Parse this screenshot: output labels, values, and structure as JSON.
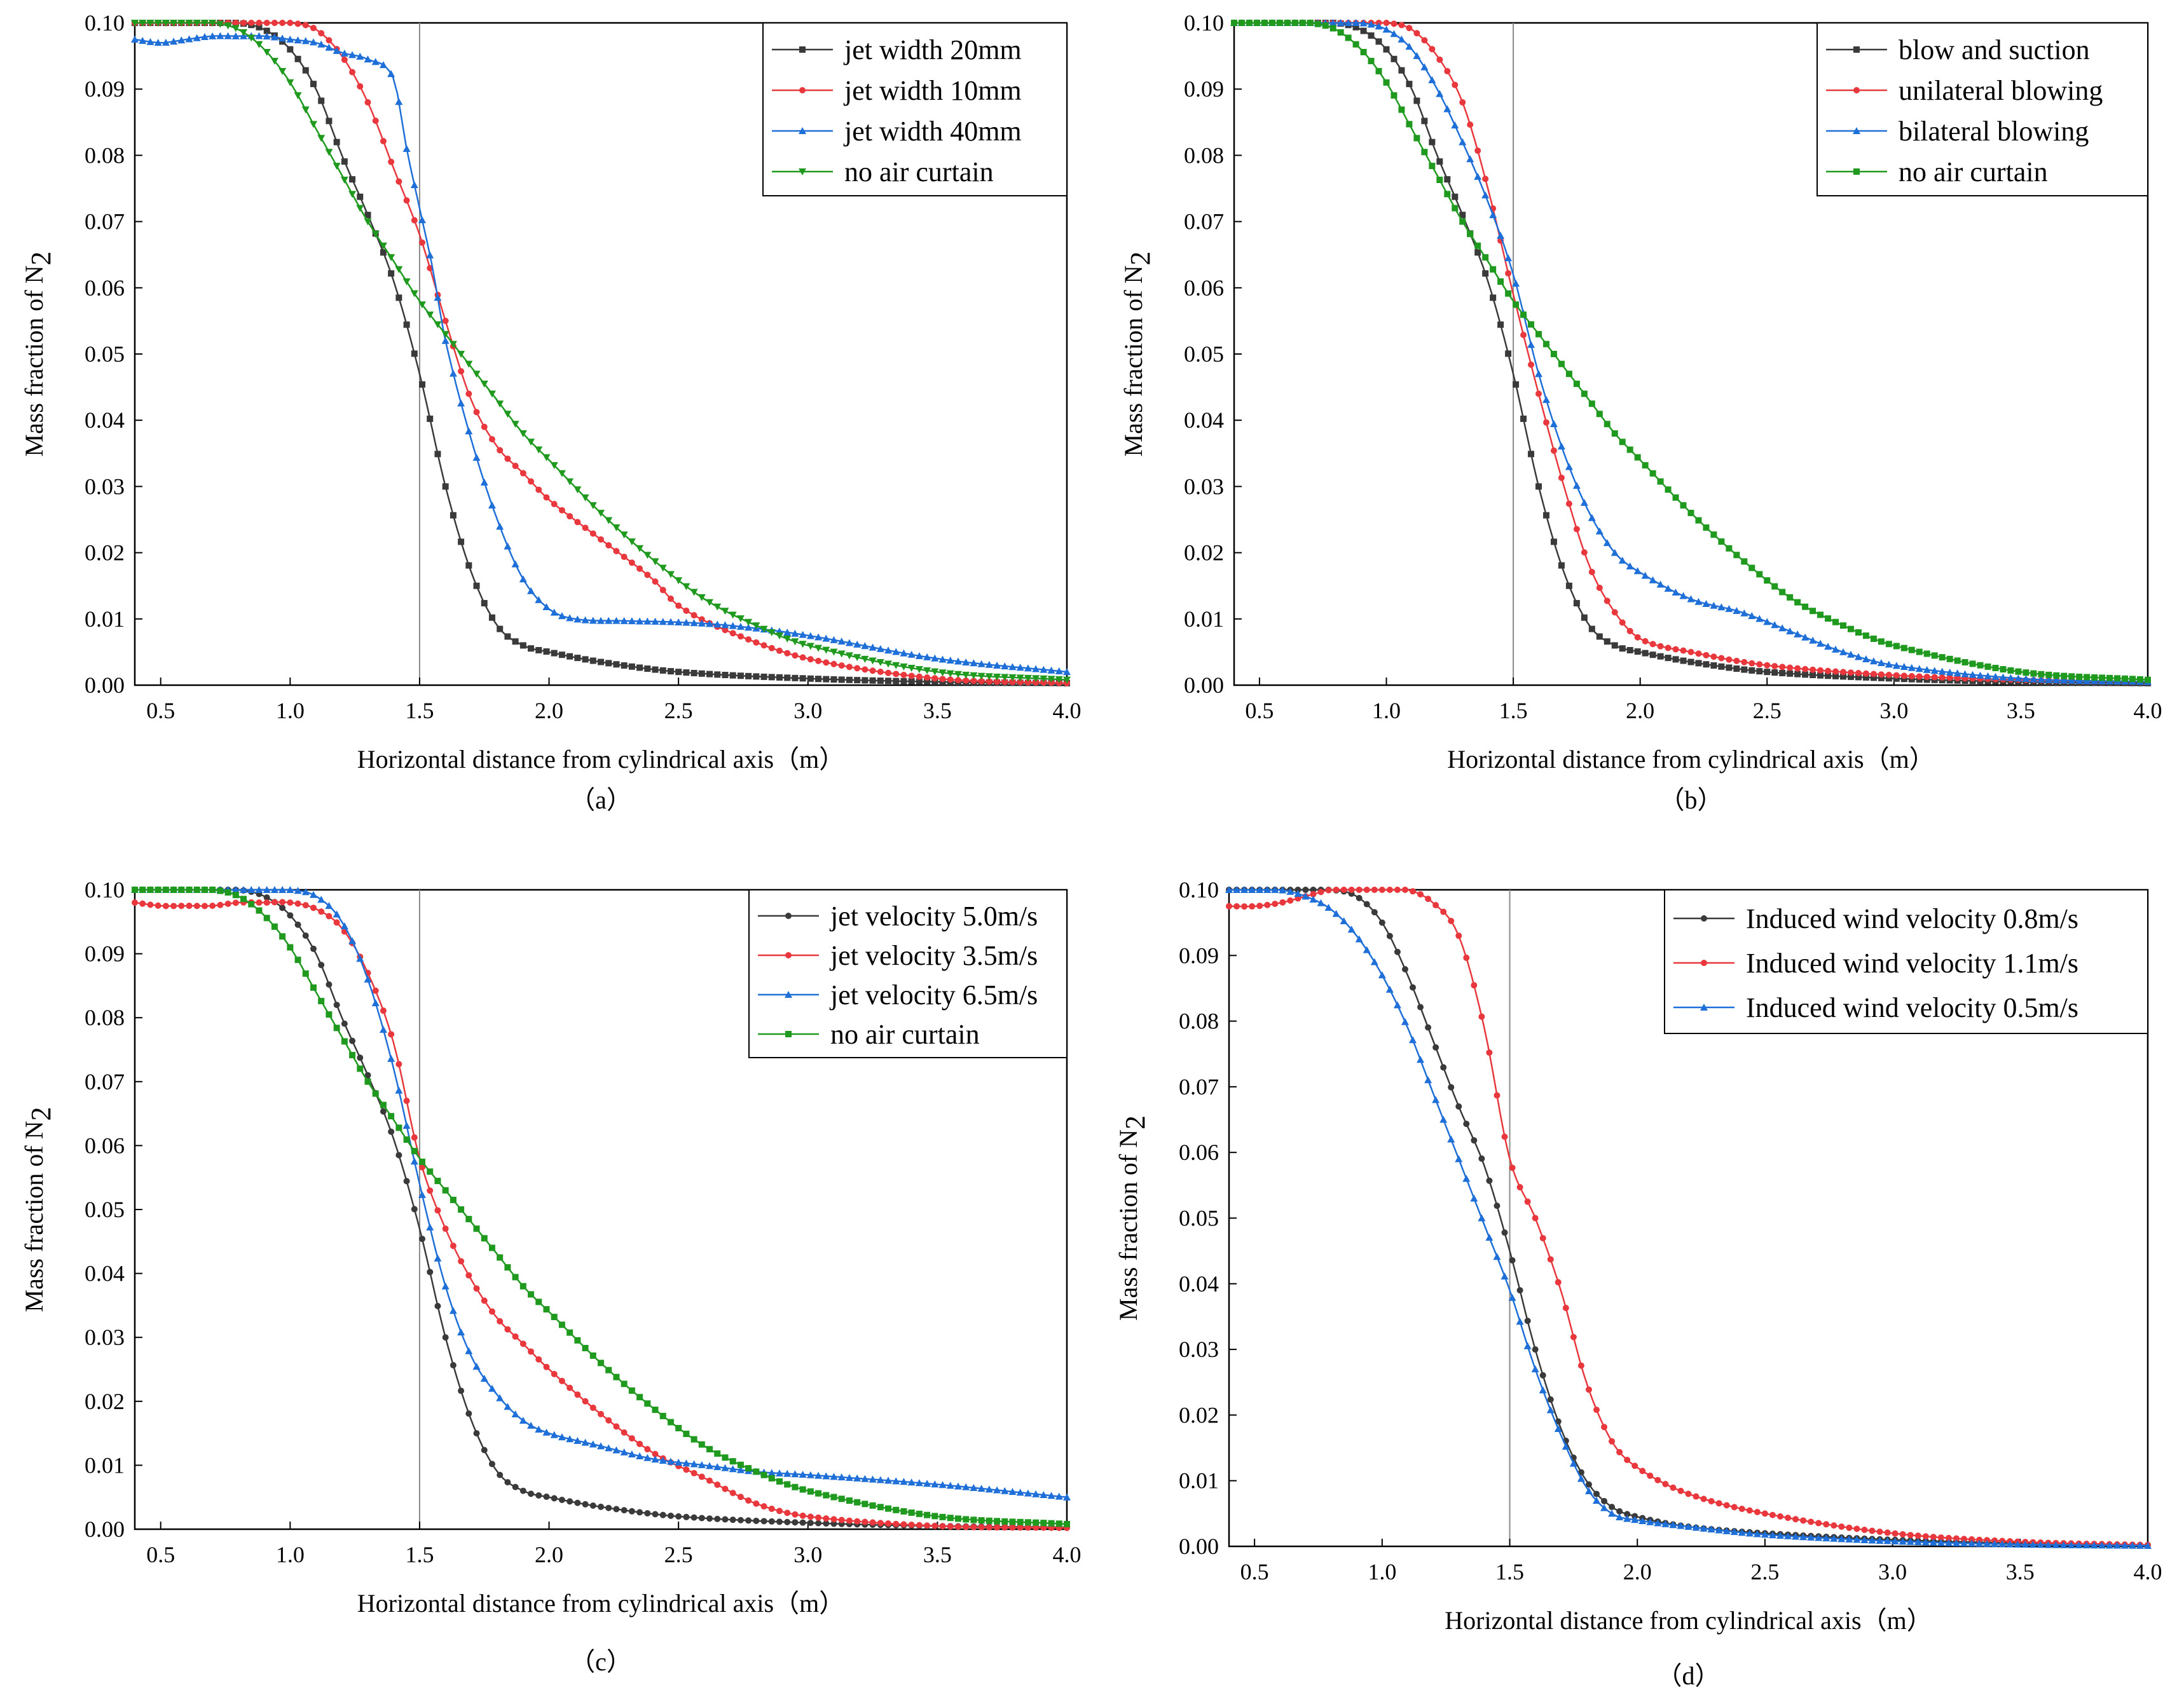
{
  "figure": {
    "colors": {
      "black": "#3a3a3a",
      "red": "#e8383d",
      "blue": "#1f6fd8",
      "green": "#1f9a1f",
      "axis": "#000000",
      "refline": "#8a8a8a"
    }
  },
  "chart_data": [
    {
      "type": "line",
      "panel": "a",
      "caption": "（a）",
      "xlabel": "Horizontal distance from cylindrical axis（m）",
      "ylabel_main": "Mass fraction of N",
      "ylabel_sub": "2",
      "xlim": [
        0.4,
        4.0
      ],
      "ylim": [
        0.0,
        0.1
      ],
      "xticks": [
        0.5,
        1.0,
        1.5,
        2.0,
        2.5,
        3.0,
        3.5,
        4.0
      ],
      "xtick_labels": [
        "0.5",
        "1.0",
        "1.5",
        "2.0",
        "2.5",
        "3.0",
        "3.5",
        "4.0"
      ],
      "yticks": [
        0,
        0.01,
        0.02,
        0.03,
        0.04,
        0.05,
        0.06,
        0.07,
        0.08,
        0.09,
        0.1
      ],
      "ytick_labels": [
        "0.00",
        "0.01",
        "0.02",
        "0.03",
        "0.04",
        "0.05",
        "0.06",
        "0.07",
        "0.08",
        "0.09",
        "0.10"
      ],
      "reference_x": 1.5,
      "legend_position": "top-right",
      "series": [
        {
          "name": "jet width 20mm",
          "color": "#3a3a3a",
          "marker": "square",
          "x": [
            0.4,
            0.5,
            0.6,
            0.7,
            0.8,
            0.9,
            1.0,
            1.1,
            1.2,
            1.3,
            1.4,
            1.5,
            1.6,
            1.7,
            1.8,
            1.9,
            2.0,
            2.2,
            2.5,
            3.0,
            3.5,
            4.0
          ],
          "y": [
            0.1,
            0.1,
            0.1,
            0.1,
            0.1,
            0.099,
            0.096,
            0.09,
            0.08,
            0.071,
            0.061,
            0.047,
            0.03,
            0.017,
            0.009,
            0.006,
            0.005,
            0.0035,
            0.002,
            0.001,
            0.0005,
            0.0003
          ]
        },
        {
          "name": "jet width 10mm",
          "color": "#e8383d",
          "marker": "circle",
          "x": [
            0.4,
            0.5,
            0.6,
            0.7,
            0.8,
            0.9,
            1.0,
            1.1,
            1.2,
            1.3,
            1.4,
            1.5,
            1.6,
            1.7,
            1.8,
            1.9,
            2.0,
            2.2,
            2.4,
            2.5,
            2.7,
            3.0,
            3.5,
            4.0
          ],
          "y": [
            0.1,
            0.1,
            0.1,
            0.1,
            0.1,
            0.1,
            0.1,
            0.099,
            0.095,
            0.088,
            0.078,
            0.068,
            0.055,
            0.043,
            0.036,
            0.032,
            0.028,
            0.022,
            0.016,
            0.012,
            0.008,
            0.004,
            0.001,
            0.0003
          ]
        },
        {
          "name": "jet width 40mm",
          "color": "#1f6fd8",
          "marker": "triangle",
          "x": [
            0.4,
            0.5,
            0.6,
            0.7,
            0.8,
            0.9,
            1.0,
            1.1,
            1.2,
            1.3,
            1.4,
            1.45,
            1.5,
            1.55,
            1.6,
            1.7,
            1.8,
            1.9,
            2.0,
            2.1,
            2.3,
            2.5,
            2.7,
            3.0,
            3.5,
            4.0
          ],
          "y": [
            0.0975,
            0.097,
            0.0975,
            0.098,
            0.098,
            0.098,
            0.0975,
            0.097,
            0.0955,
            0.0945,
            0.0915,
            0.081,
            0.072,
            0.063,
            0.052,
            0.037,
            0.025,
            0.016,
            0.0115,
            0.01,
            0.0097,
            0.0095,
            0.009,
            0.0075,
            0.004,
            0.002
          ]
        },
        {
          "name": "no air curtain",
          "color": "#1f9a1f",
          "marker": "triangle-down",
          "x": [
            0.4,
            0.5,
            0.6,
            0.7,
            0.8,
            0.9,
            1.0,
            1.1,
            1.2,
            1.3,
            1.4,
            1.5,
            1.6,
            1.7,
            1.8,
            1.9,
            2.0,
            2.2,
            2.4,
            2.6,
            2.8,
            3.0,
            3.5,
            4.0
          ],
          "y": [
            0.1,
            0.1,
            0.1,
            0.1,
            0.099,
            0.096,
            0.091,
            0.084,
            0.077,
            0.07,
            0.064,
            0.058,
            0.053,
            0.048,
            0.043,
            0.038,
            0.034,
            0.026,
            0.019,
            0.013,
            0.009,
            0.006,
            0.002,
            0.0008
          ]
        }
      ]
    },
    {
      "type": "line",
      "panel": "b",
      "caption": "（b）",
      "xlabel": "Horizontal distance from cylindrical axis（m）",
      "ylabel_main": "Mass fraction of N",
      "ylabel_sub": "2",
      "xlim": [
        0.4,
        4.0
      ],
      "ylim": [
        0.0,
        0.1
      ],
      "xticks": [
        0.5,
        1.0,
        1.5,
        2.0,
        2.5,
        3.0,
        3.5,
        4.0
      ],
      "xtick_labels": [
        "0.5",
        "1.0",
        "1.5",
        "2.0",
        "2.5",
        "3.0",
        "3.5",
        "4.0"
      ],
      "yticks": [
        0,
        0.01,
        0.02,
        0.03,
        0.04,
        0.05,
        0.06,
        0.07,
        0.08,
        0.09,
        0.1
      ],
      "ytick_labels": [
        "0.00",
        "0.01",
        "0.02",
        "0.03",
        "0.04",
        "0.05",
        "0.06",
        "0.07",
        "0.08",
        "0.09",
        "0.10"
      ],
      "reference_x": 1.5,
      "legend_position": "top-right",
      "series": [
        {
          "name": "blow and suction",
          "color": "#3a3a3a",
          "marker": "square",
          "x": [
            0.4,
            0.5,
            0.6,
            0.7,
            0.8,
            0.9,
            1.0,
            1.1,
            1.2,
            1.3,
            1.4,
            1.5,
            1.6,
            1.7,
            1.8,
            1.9,
            2.0,
            2.2,
            2.5,
            3.0,
            3.5,
            4.0
          ],
          "y": [
            0.1,
            0.1,
            0.1,
            0.1,
            0.1,
            0.099,
            0.096,
            0.09,
            0.08,
            0.071,
            0.061,
            0.047,
            0.03,
            0.017,
            0.009,
            0.006,
            0.005,
            0.0035,
            0.002,
            0.001,
            0.0005,
            0.0003
          ]
        },
        {
          "name": "unilateral blowing",
          "color": "#e8383d",
          "marker": "circle",
          "x": [
            0.4,
            0.5,
            0.6,
            0.7,
            0.8,
            0.9,
            1.0,
            1.1,
            1.2,
            1.3,
            1.4,
            1.5,
            1.6,
            1.7,
            1.8,
            1.9,
            2.0,
            2.2,
            2.5,
            3.0,
            3.5,
            4.0
          ],
          "y": [
            0.1,
            0.1,
            0.1,
            0.1,
            0.1,
            0.1,
            0.1,
            0.099,
            0.095,
            0.088,
            0.075,
            0.059,
            0.044,
            0.03,
            0.018,
            0.011,
            0.007,
            0.005,
            0.003,
            0.0015,
            0.0008,
            0.0005
          ]
        },
        {
          "name": "bilateral blowing",
          "color": "#1f6fd8",
          "marker": "triangle",
          "x": [
            0.4,
            0.5,
            0.6,
            0.7,
            0.8,
            0.9,
            1.0,
            1.1,
            1.2,
            1.3,
            1.4,
            1.5,
            1.6,
            1.7,
            1.8,
            1.9,
            2.0,
            2.2,
            2.4,
            2.6,
            2.8,
            3.0,
            3.5,
            4.0
          ],
          "y": [
            0.1,
            0.1,
            0.1,
            0.1,
            0.1,
            0.1,
            0.099,
            0.096,
            0.09,
            0.082,
            0.073,
            0.062,
            0.047,
            0.035,
            0.026,
            0.02,
            0.017,
            0.013,
            0.011,
            0.008,
            0.005,
            0.003,
            0.001,
            0.0005
          ]
        },
        {
          "name": "no air curtain",
          "color": "#1f9a1f",
          "marker": "square",
          "x": [
            0.4,
            0.5,
            0.6,
            0.7,
            0.8,
            0.9,
            1.0,
            1.1,
            1.2,
            1.3,
            1.4,
            1.5,
            1.6,
            1.7,
            1.8,
            1.9,
            2.0,
            2.2,
            2.4,
            2.6,
            2.8,
            3.0,
            3.5,
            4.0
          ],
          "y": [
            0.1,
            0.1,
            0.1,
            0.1,
            0.099,
            0.096,
            0.091,
            0.084,
            0.077,
            0.07,
            0.064,
            0.058,
            0.053,
            0.048,
            0.043,
            0.038,
            0.034,
            0.026,
            0.019,
            0.013,
            0.009,
            0.006,
            0.002,
            0.0008
          ]
        }
      ]
    },
    {
      "type": "line",
      "panel": "c",
      "caption": "（c）",
      "xlabel": "Horizontal distance from cylindrical axis（m）",
      "ylabel_main": "Mass fraction of N",
      "ylabel_sub": "2",
      "xlim": [
        0.4,
        4.0
      ],
      "ylim": [
        0.0,
        0.1
      ],
      "xticks": [
        0.5,
        1.0,
        1.5,
        2.0,
        2.5,
        3.0,
        3.5,
        4.0
      ],
      "xtick_labels": [
        "0.5",
        "1.0",
        "1.5",
        "2.0",
        "2.5",
        "3.0",
        "3.5",
        "4.0"
      ],
      "yticks": [
        0,
        0.01,
        0.02,
        0.03,
        0.04,
        0.05,
        0.06,
        0.07,
        0.08,
        0.09,
        0.1
      ],
      "ytick_labels": [
        "0.00",
        "0.01",
        "0.02",
        "0.03",
        "0.04",
        "0.05",
        "0.06",
        "0.07",
        "0.08",
        "0.09",
        "0.10"
      ],
      "reference_x": 1.5,
      "legend_position": "top-right",
      "series": [
        {
          "name": "jet velocity 5.0m/s",
          "color": "#3a3a3a",
          "marker": "circle",
          "x": [
            0.4,
            0.5,
            0.6,
            0.7,
            0.8,
            0.9,
            1.0,
            1.1,
            1.2,
            1.3,
            1.4,
            1.5,
            1.6,
            1.7,
            1.8,
            1.9,
            2.0,
            2.2,
            2.5,
            3.0,
            3.5,
            4.0
          ],
          "y": [
            0.1,
            0.1,
            0.1,
            0.1,
            0.1,
            0.099,
            0.096,
            0.09,
            0.08,
            0.071,
            0.061,
            0.047,
            0.03,
            0.017,
            0.009,
            0.006,
            0.005,
            0.0035,
            0.002,
            0.001,
            0.0005,
            0.0003
          ]
        },
        {
          "name": "jet velocity 3.5m/s",
          "color": "#e8383d",
          "marker": "circle",
          "x": [
            0.4,
            0.5,
            0.6,
            0.7,
            0.8,
            0.9,
            1.0,
            1.1,
            1.2,
            1.3,
            1.4,
            1.5,
            1.6,
            1.7,
            1.8,
            1.9,
            2.0,
            2.2,
            2.4,
            2.6,
            2.8,
            3.0,
            3.5,
            4.0
          ],
          "y": [
            0.098,
            0.0975,
            0.0975,
            0.0975,
            0.098,
            0.098,
            0.098,
            0.097,
            0.094,
            0.087,
            0.076,
            0.058,
            0.047,
            0.039,
            0.033,
            0.029,
            0.025,
            0.018,
            0.012,
            0.008,
            0.004,
            0.002,
            0.0005,
            0.0002
          ]
        },
        {
          "name": "jet velocity 6.5m/s",
          "color": "#1f6fd8",
          "marker": "triangle",
          "x": [
            0.4,
            0.5,
            0.6,
            0.7,
            0.8,
            0.9,
            1.0,
            1.1,
            1.2,
            1.3,
            1.4,
            1.5,
            1.6,
            1.7,
            1.8,
            1.9,
            2.0,
            2.2,
            2.4,
            2.6,
            2.8,
            3.0,
            3.5,
            4.0
          ],
          "y": [
            0.1,
            0.1,
            0.1,
            0.1,
            0.1,
            0.1,
            0.1,
            0.099,
            0.095,
            0.086,
            0.072,
            0.054,
            0.038,
            0.027,
            0.021,
            0.017,
            0.015,
            0.013,
            0.011,
            0.01,
            0.009,
            0.0085,
            0.007,
            0.005
          ]
        },
        {
          "name": "no air curtain",
          "color": "#1f9a1f",
          "marker": "square",
          "x": [
            0.4,
            0.5,
            0.6,
            0.7,
            0.8,
            0.9,
            1.0,
            1.1,
            1.2,
            1.3,
            1.4,
            1.5,
            1.6,
            1.7,
            1.8,
            1.9,
            2.0,
            2.2,
            2.4,
            2.6,
            2.8,
            3.0,
            3.5,
            4.0
          ],
          "y": [
            0.1,
            0.1,
            0.1,
            0.1,
            0.099,
            0.096,
            0.091,
            0.084,
            0.077,
            0.07,
            0.064,
            0.058,
            0.053,
            0.048,
            0.043,
            0.038,
            0.034,
            0.026,
            0.019,
            0.013,
            0.009,
            0.006,
            0.002,
            0.0008
          ]
        }
      ]
    },
    {
      "type": "line",
      "panel": "d",
      "caption": "（d）",
      "xlabel": "Horizontal distance from cylindrical axis（m）",
      "ylabel_main": "Mass fraction of N",
      "ylabel_sub": "2",
      "xlim": [
        0.4,
        4.0
      ],
      "ylim": [
        0.0,
        0.1
      ],
      "xticks": [
        0.5,
        1.0,
        1.5,
        2.0,
        2.5,
        3.0,
        3.5,
        4.0
      ],
      "xtick_labels": [
        "0.5",
        "1.0",
        "1.5",
        "2.0",
        "2.5",
        "3.0",
        "3.5",
        "4.0"
      ],
      "yticks": [
        0,
        0.01,
        0.02,
        0.03,
        0.04,
        0.05,
        0.06,
        0.07,
        0.08,
        0.09,
        0.1
      ],
      "ytick_labels": [
        "0.00",
        "0.01",
        "0.02",
        "0.03",
        "0.04",
        "0.05",
        "0.06",
        "0.07",
        "0.08",
        "0.09",
        "0.10"
      ],
      "reference_x": 1.5,
      "legend_position": "top-right",
      "series": [
        {
          "name": "Induced wind velocity 0.8m/s",
          "color": "#3a3a3a",
          "marker": "circle",
          "x": [
            0.4,
            0.5,
            0.6,
            0.7,
            0.8,
            0.9,
            1.0,
            1.1,
            1.2,
            1.3,
            1.4,
            1.5,
            1.6,
            1.7,
            1.8,
            1.9,
            2.0,
            2.2,
            2.5,
            3.0,
            3.5,
            4.0
          ],
          "y": [
            0.1,
            0.1,
            0.1,
            0.1,
            0.1,
            0.099,
            0.095,
            0.087,
            0.077,
            0.067,
            0.058,
            0.045,
            0.03,
            0.018,
            0.01,
            0.006,
            0.0045,
            0.003,
            0.002,
            0.001,
            0.0005,
            0.0002
          ]
        },
        {
          "name": "Induced wind velocity 1.1m/s",
          "color": "#e8383d",
          "marker": "circle",
          "x": [
            0.4,
            0.5,
            0.6,
            0.7,
            0.8,
            0.9,
            1.0,
            1.1,
            1.2,
            1.3,
            1.4,
            1.5,
            1.6,
            1.7,
            1.8,
            1.9,
            2.0,
            2.2,
            2.5,
            3.0,
            3.5,
            4.0
          ],
          "y": [
            0.0975,
            0.0975,
            0.098,
            0.099,
            0.1,
            0.1,
            0.1,
            0.1,
            0.098,
            0.093,
            0.079,
            0.059,
            0.05,
            0.039,
            0.025,
            0.016,
            0.012,
            0.008,
            0.005,
            0.002,
            0.0007,
            0.0002
          ]
        },
        {
          "name": "Induced wind velocity 0.5m/s",
          "color": "#1f6fd8",
          "marker": "triangle",
          "x": [
            0.4,
            0.5,
            0.6,
            0.7,
            0.8,
            0.9,
            1.0,
            1.1,
            1.2,
            1.3,
            1.4,
            1.5,
            1.6,
            1.7,
            1.8,
            1.9,
            2.0,
            2.2,
            2.5,
            3.0,
            3.5,
            4.0
          ],
          "y": [
            0.1,
            0.1,
            0.1,
            0.099,
            0.097,
            0.093,
            0.087,
            0.079,
            0.069,
            0.059,
            0.049,
            0.039,
            0.027,
            0.017,
            0.009,
            0.005,
            0.004,
            0.003,
            0.0018,
            0.0008,
            0.0003,
            0.0001
          ]
        }
      ]
    }
  ]
}
